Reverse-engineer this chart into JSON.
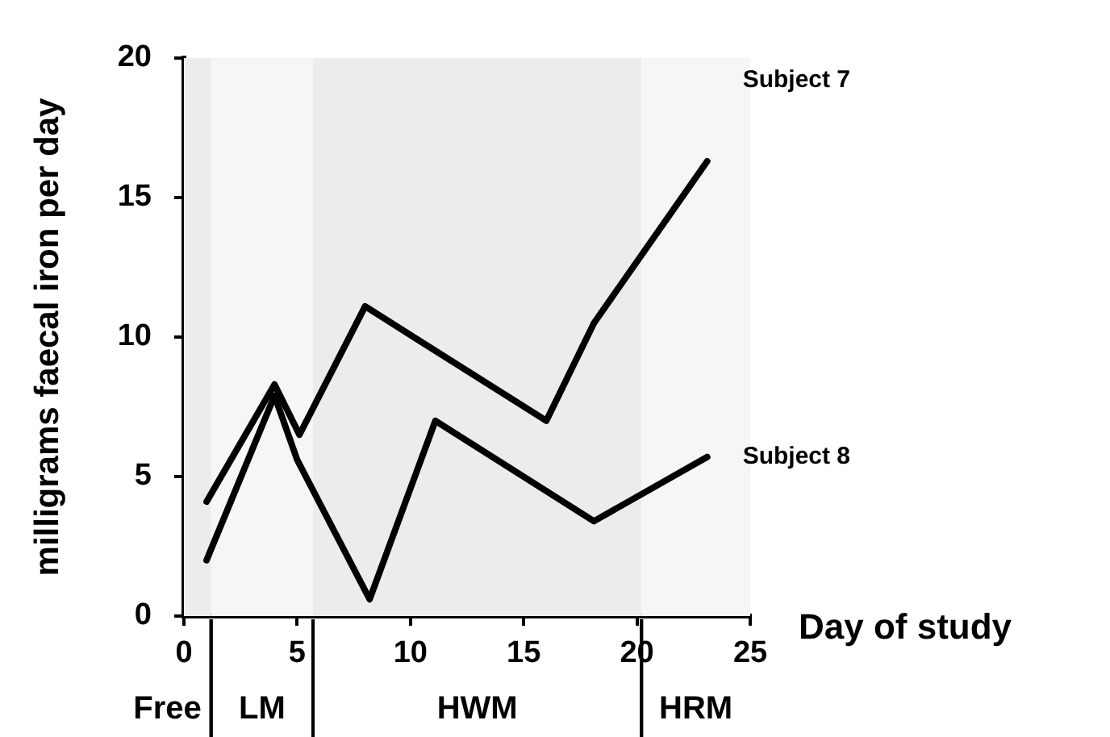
{
  "chart_data": {
    "type": "line",
    "xlabel": "Day of study",
    "ylabel": "milligrams faecal iron per day",
    "xlim": [
      0,
      25
    ],
    "xticks": [
      0,
      5,
      10,
      15,
      20,
      25
    ],
    "ylim": [
      0,
      20
    ],
    "yticks": [
      0,
      5,
      10,
      15,
      20
    ],
    "grid": false,
    "legend": false,
    "marker": "none",
    "line_style": "solid",
    "series": [
      {
        "name": "Subject 7",
        "color": "#000000",
        "x": [
          1.0,
          4.0,
          5.1,
          8.0,
          16.0,
          18.1,
          23.1
        ],
        "values": [
          4.1,
          8.3,
          6.5,
          11.1,
          7.0,
          10.5,
          16.3
        ]
      },
      {
        "name": "Subject 8",
        "color": "#000000",
        "x": [
          1.0,
          4.0,
          5.0,
          8.2,
          11.1,
          18.1,
          23.1
        ],
        "values": [
          2.0,
          7.9,
          5.6,
          0.6,
          7.0,
          3.4,
          5.7
        ]
      }
    ],
    "bands": [
      {
        "axis": "x",
        "from": 0,
        "to": 1.2,
        "label": "Free",
        "color": "#ececec"
      },
      {
        "axis": "x",
        "from": 1.2,
        "to": 5.7,
        "label": "LM",
        "color": "#f6f6f6"
      },
      {
        "axis": "x",
        "from": 5.7,
        "to": 20.2,
        "label": "HWM",
        "color": "#ececec"
      },
      {
        "axis": "x",
        "from": 20.2,
        "to": 25,
        "label": "HRM",
        "color": "#f6f6f6"
      }
    ]
  }
}
